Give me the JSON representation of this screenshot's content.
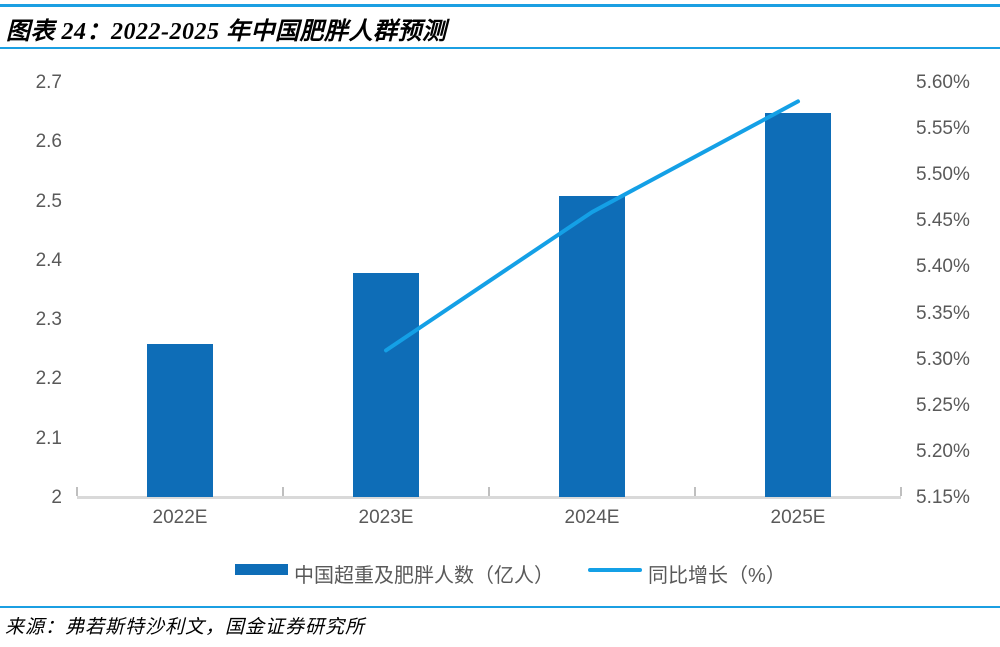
{
  "figure": {
    "title": "图表 24：2022-2025 年中国肥胖人群预测",
    "source": "来源：弗若斯特沙利文，国金证券研究所"
  },
  "colors": {
    "accent_rule": "#1b9fe2",
    "bar": "#0e6db7",
    "line": "#14a0e6",
    "axis_text": "#595959",
    "axis_line": "#d9d9d9",
    "tick": "#bfbfbf"
  },
  "chart_data": {
    "type": "bar",
    "subtype": "combo-bar-line-dual-axis",
    "categories": [
      "2022E",
      "2023E",
      "2024E",
      "2025E"
    ],
    "series": [
      {
        "name": "中国超重及肥胖人数（亿人）",
        "type": "bar",
        "axis": "left",
        "values": [
          2.26,
          2.38,
          2.51,
          2.65
        ]
      },
      {
        "name": "同比增长（%）",
        "type": "line",
        "axis": "right",
        "values": [
          null,
          5.31,
          5.46,
          5.58
        ]
      }
    ],
    "title": "2022-2025 年中国肥胖人群预测",
    "xlabel": "",
    "ylabel_left": "亿人",
    "ylabel_right": "%",
    "left_axis": {
      "min": 2.0,
      "max": 2.7,
      "tick_labels": [
        "2.7",
        "2.6",
        "2.5",
        "2.4",
        "2.3",
        "2.2",
        "2.1",
        "2"
      ]
    },
    "right_axis": {
      "min": 5.15,
      "max": 5.6,
      "tick_labels": [
        "5.60%",
        "5.55%",
        "5.50%",
        "5.45%",
        "5.40%",
        "5.35%",
        "5.30%",
        "5.25%",
        "5.20%",
        "5.15%"
      ]
    },
    "grid": false,
    "legend_position": "bottom"
  }
}
